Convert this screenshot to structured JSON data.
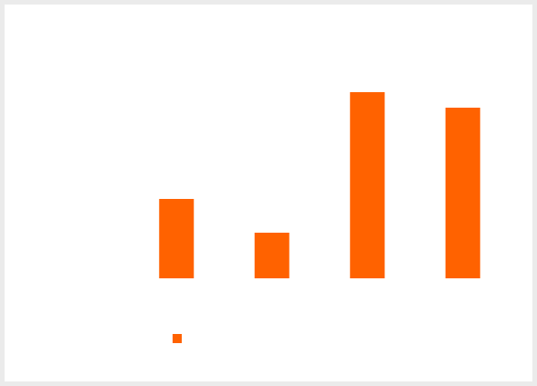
{
  "chart_data": {
    "type": "bar",
    "categories": [
      null,
      null,
      null,
      null
    ],
    "series": [
      {
        "color": "#ff6200",
        "values": [
          87,
          50,
          204,
          187
        ]
      }
    ],
    "ylim": [
      0,
      250
    ]
  }
}
